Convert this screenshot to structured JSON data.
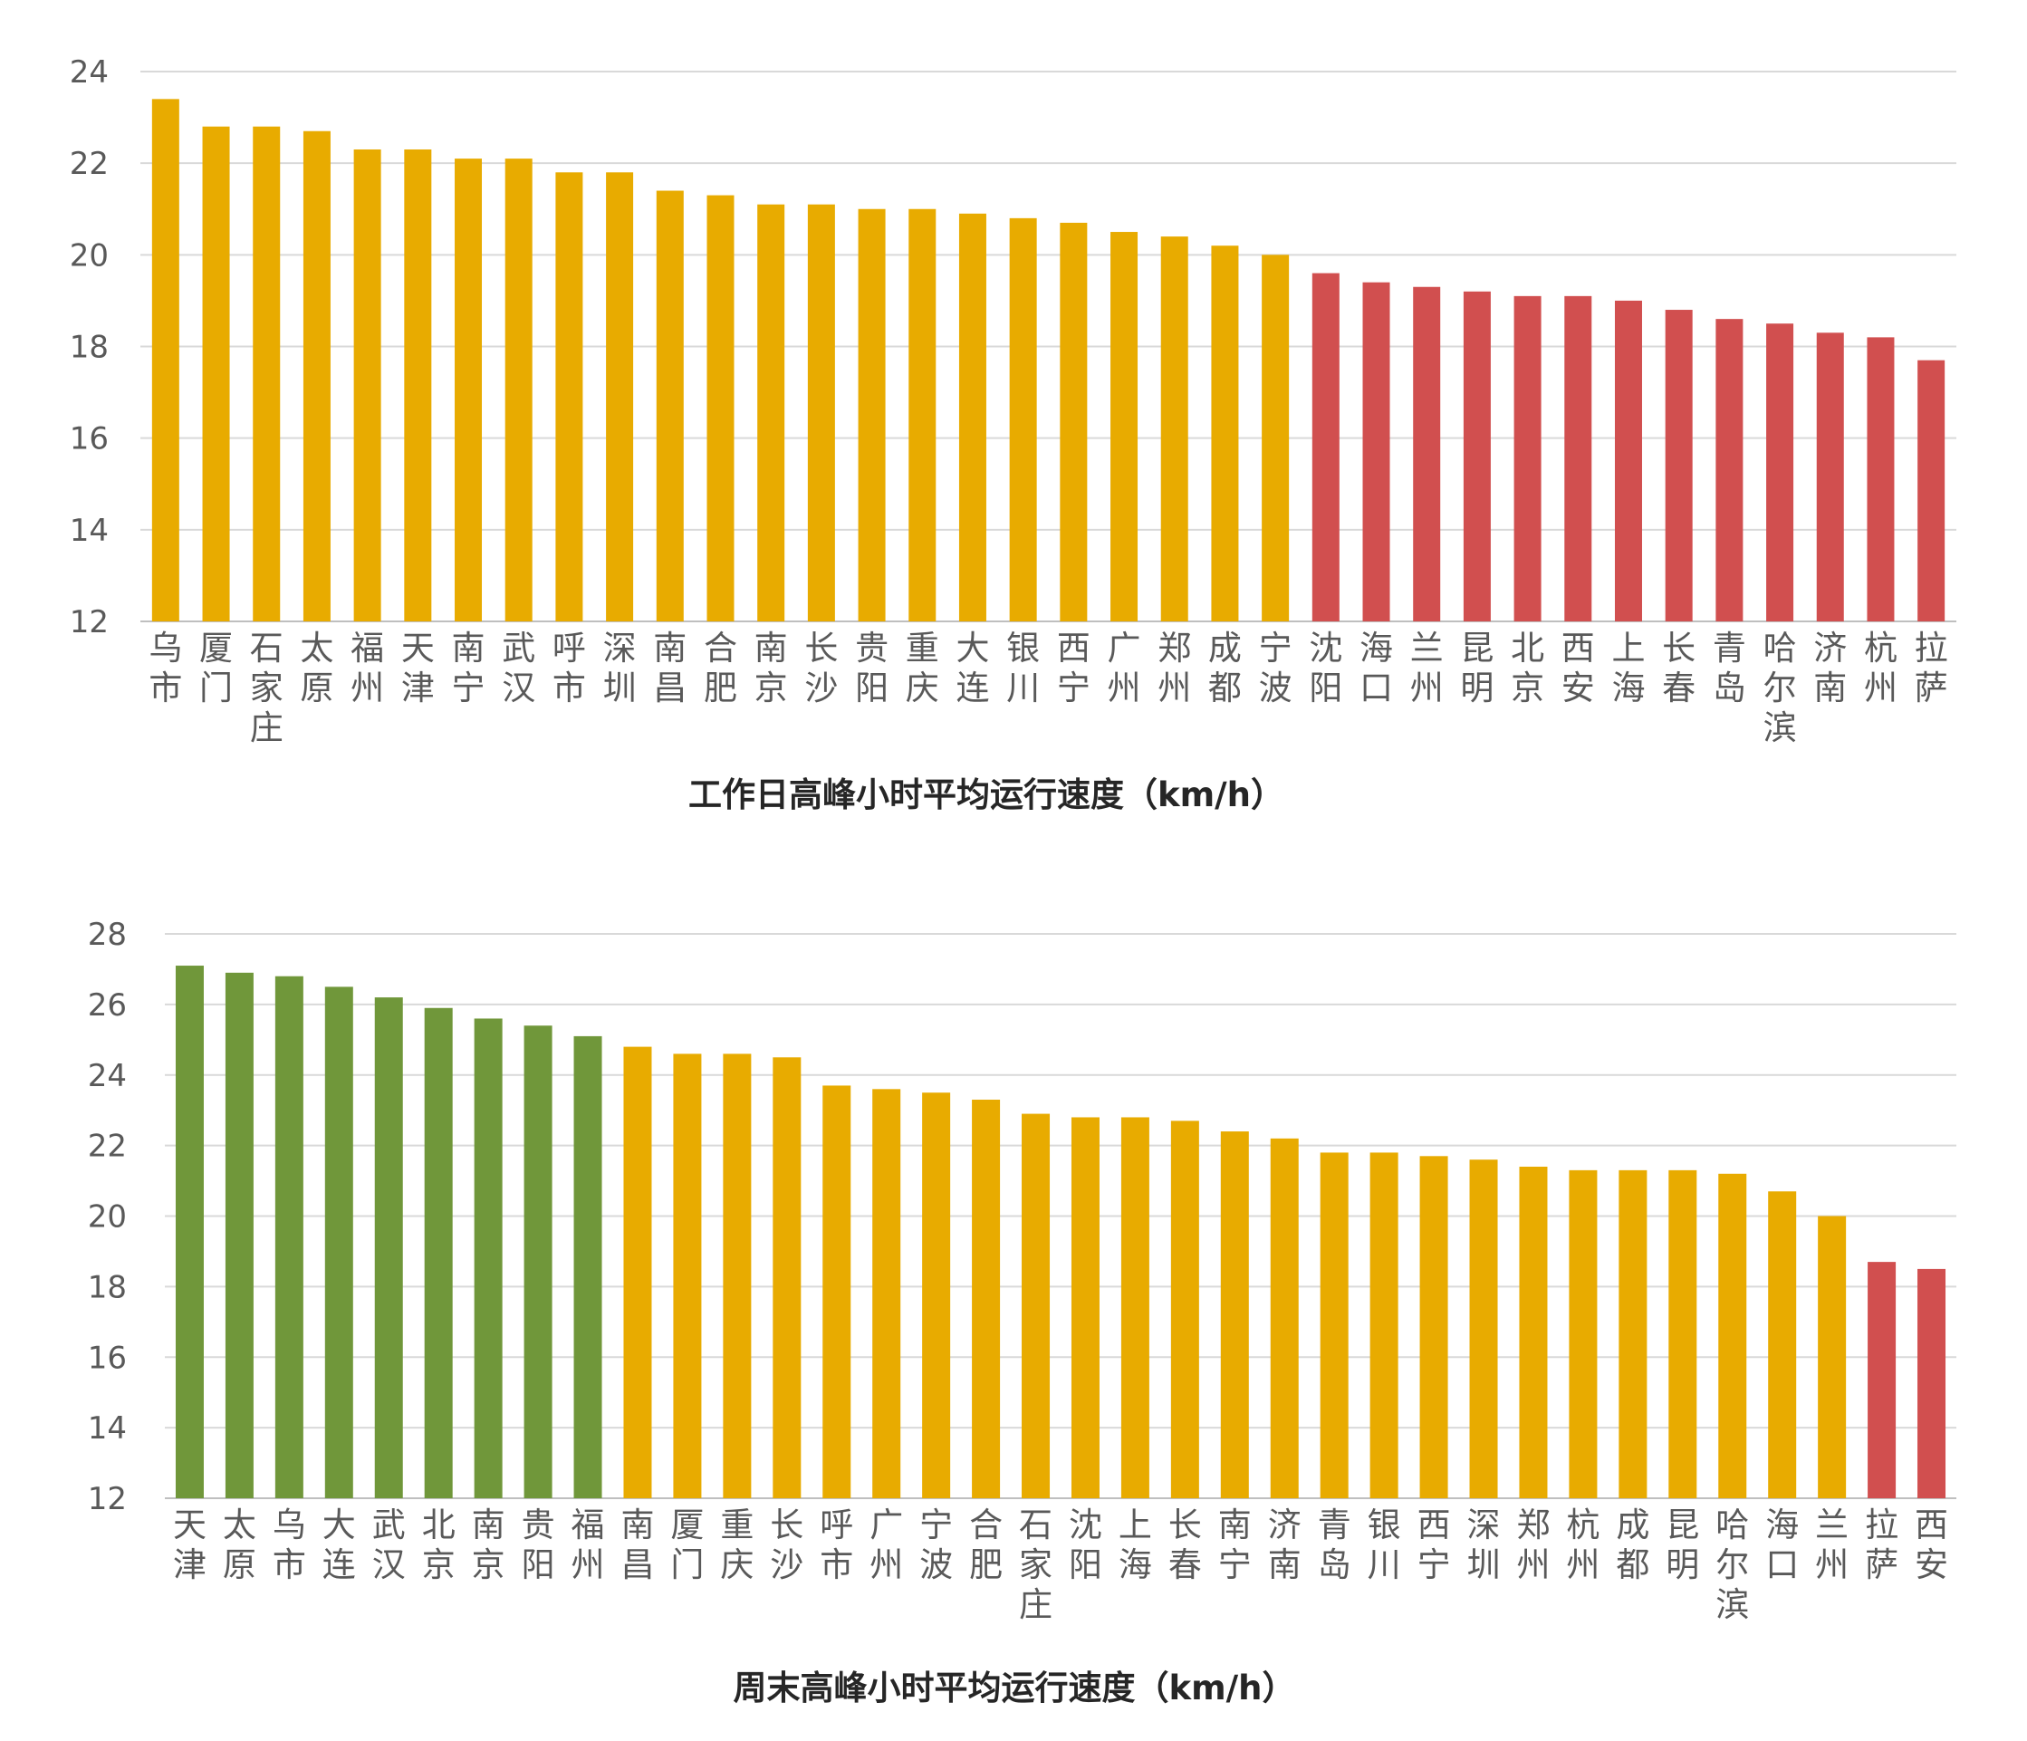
{
  "colors": {
    "green": "#70973a",
    "yellow": "#e8ab00",
    "red": "#d14f4f",
    "grid": "#d9d9d9",
    "text": "#595959"
  },
  "chart_data": [
    {
      "type": "bar",
      "title": "工作日高峰小时平均运行速度（km/h）",
      "xlabel": "",
      "ylabel": "",
      "ylim": [
        12,
        24
      ],
      "yticks": [
        12,
        14,
        16,
        18,
        20,
        22,
        24
      ],
      "grid": true,
      "legend": "none",
      "categories": [
        "乌市",
        "厦门",
        "石家庄",
        "太原",
        "福州",
        "天津",
        "南宁",
        "武汉",
        "呼市",
        "深圳",
        "南昌",
        "合肥",
        "南京",
        "长沙",
        "贵阳",
        "重庆",
        "大连",
        "银川",
        "西宁",
        "广州",
        "郑州",
        "成都",
        "宁波",
        "沈阳",
        "海口",
        "兰州",
        "昆明",
        "北京",
        "西安",
        "上海",
        "长春",
        "青岛",
        "哈尔滨",
        "济南",
        "杭州",
        "拉萨"
      ],
      "values": [
        23.4,
        22.8,
        22.8,
        22.7,
        22.3,
        22.3,
        22.1,
        22.1,
        21.8,
        21.8,
        21.4,
        21.3,
        21.1,
        21.1,
        21.0,
        21.0,
        20.9,
        20.8,
        20.7,
        20.5,
        20.4,
        20.2,
        20.0,
        19.6,
        19.4,
        19.3,
        19.2,
        19.1,
        19.1,
        19.0,
        18.8,
        18.6,
        18.5,
        18.3,
        18.2,
        17.7
      ],
      "bar_colors": [
        "yellow",
        "yellow",
        "yellow",
        "yellow",
        "yellow",
        "yellow",
        "yellow",
        "yellow",
        "yellow",
        "yellow",
        "yellow",
        "yellow",
        "yellow",
        "yellow",
        "yellow",
        "yellow",
        "yellow",
        "yellow",
        "yellow",
        "yellow",
        "yellow",
        "yellow",
        "yellow",
        "red",
        "red",
        "red",
        "red",
        "red",
        "red",
        "red",
        "red",
        "red",
        "red",
        "red",
        "red",
        "red"
      ]
    },
    {
      "type": "bar",
      "title": "周末高峰小时平均运行速度（km/h）",
      "xlabel": "",
      "ylabel": "",
      "ylim": [
        12,
        28
      ],
      "yticks": [
        12,
        14,
        16,
        18,
        20,
        22,
        24,
        26,
        28
      ],
      "grid": true,
      "legend": "none",
      "categories": [
        "天津",
        "太原",
        "乌市",
        "大连",
        "武汉",
        "北京",
        "南京",
        "贵阳",
        "福州",
        "南昌",
        "厦门",
        "重庆",
        "长沙",
        "呼市",
        "广州",
        "宁波",
        "合肥",
        "石家庄",
        "沈阳",
        "上海",
        "长春",
        "南宁",
        "济南",
        "青岛",
        "银川",
        "西宁",
        "深圳",
        "郑州",
        "杭州",
        "成都",
        "昆明",
        "哈尔滨",
        "海口",
        "兰州",
        "拉萨",
        "西安"
      ],
      "values": [
        27.1,
        26.9,
        26.8,
        26.5,
        26.2,
        25.9,
        25.6,
        25.4,
        25.1,
        24.8,
        24.6,
        24.6,
        24.5,
        23.7,
        23.6,
        23.5,
        23.3,
        22.9,
        22.8,
        22.8,
        22.7,
        22.4,
        22.2,
        21.8,
        21.8,
        21.7,
        21.6,
        21.4,
        21.3,
        21.3,
        21.3,
        21.2,
        20.7,
        20.0,
        18.7,
        18.5
      ],
      "bar_colors": [
        "green",
        "green",
        "green",
        "green",
        "green",
        "green",
        "green",
        "green",
        "green",
        "yellow",
        "yellow",
        "yellow",
        "yellow",
        "yellow",
        "yellow",
        "yellow",
        "yellow",
        "yellow",
        "yellow",
        "yellow",
        "yellow",
        "yellow",
        "yellow",
        "yellow",
        "yellow",
        "yellow",
        "yellow",
        "yellow",
        "yellow",
        "yellow",
        "yellow",
        "yellow",
        "yellow",
        "yellow",
        "red",
        "red"
      ]
    }
  ]
}
